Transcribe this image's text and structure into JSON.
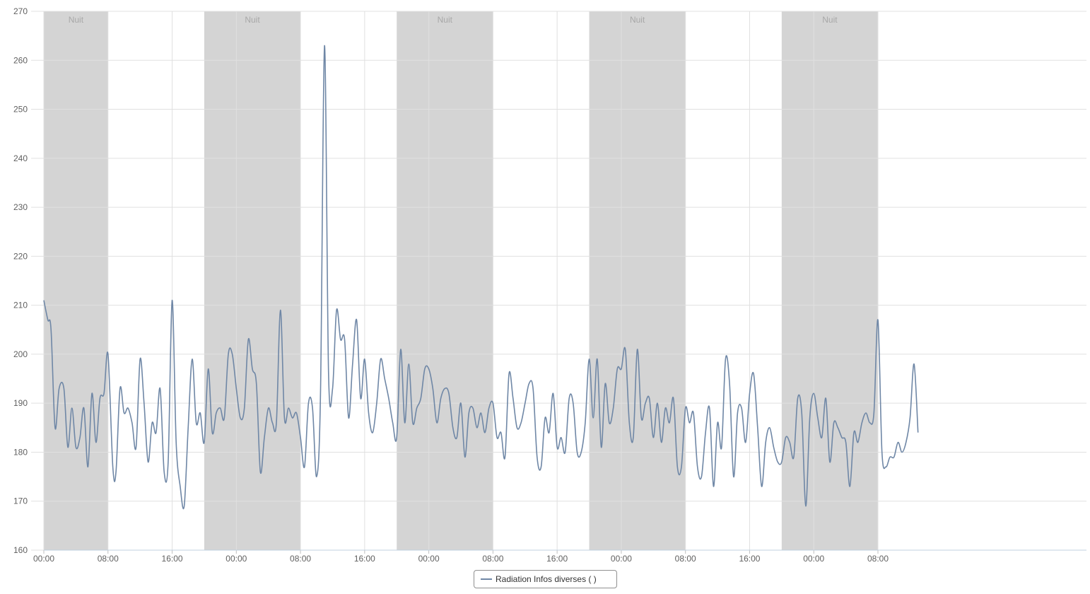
{
  "colors": {
    "series": "#6f87a6",
    "night_band": "#d4d4d4",
    "grid": "#e0e0e0",
    "axis_text": "#606060",
    "band_text": "#a8a8a8"
  },
  "chart_data": {
    "type": "line",
    "x_unit": "hours since first tick",
    "xlim": [
      0,
      130
    ],
    "ylim": [
      160,
      270
    ],
    "xlabel": "",
    "ylabel": "",
    "grid": true,
    "legend_placement": "bottom-center",
    "y_ticks": [
      160,
      170,
      180,
      190,
      200,
      210,
      220,
      230,
      240,
      250,
      260,
      270
    ],
    "x_ticks": [
      {
        "h": 0,
        "label": "00:00"
      },
      {
        "h": 8,
        "label": "08:00"
      },
      {
        "h": 16,
        "label": "16:00"
      },
      {
        "h": 24,
        "label": "00:00"
      },
      {
        "h": 32,
        "label": "08:00"
      },
      {
        "h": 40,
        "label": "16:00"
      },
      {
        "h": 48,
        "label": "00:00"
      },
      {
        "h": 56,
        "label": "08:00"
      },
      {
        "h": 64,
        "label": "16:00"
      },
      {
        "h": 72,
        "label": "00:00"
      },
      {
        "h": 80,
        "label": "08:00"
      },
      {
        "h": 88,
        "label": "16:00"
      },
      {
        "h": 96,
        "label": "00:00"
      },
      {
        "h": 104,
        "label": "08:00"
      }
    ],
    "night_bands": [
      {
        "from": 0,
        "to": 8,
        "label": "Nuit"
      },
      {
        "from": 20,
        "to": 32,
        "label": "Nuit"
      },
      {
        "from": 44,
        "to": 56,
        "label": "Nuit"
      },
      {
        "from": 68,
        "to": 80,
        "label": "Nuit"
      },
      {
        "from": 92,
        "to": 104,
        "label": "Nuit"
      }
    ],
    "series": [
      {
        "name": "Radiation Infos diverses ( )",
        "points": [
          [
            0,
            211
          ],
          [
            0.5,
            207
          ],
          [
            0.9,
            205
          ],
          [
            1.4,
            185
          ],
          [
            1.9,
            193
          ],
          [
            2.5,
            193
          ],
          [
            3,
            181
          ],
          [
            3.5,
            189
          ],
          [
            4,
            181
          ],
          [
            4.5,
            183
          ],
          [
            5,
            189
          ],
          [
            5.5,
            177
          ],
          [
            6,
            192
          ],
          [
            6.5,
            182
          ],
          [
            7,
            191
          ],
          [
            7.5,
            192
          ],
          [
            8,
            200
          ],
          [
            8.6,
            177
          ],
          [
            9,
            176
          ],
          [
            9.5,
            193
          ],
          [
            10,
            188
          ],
          [
            10.5,
            189
          ],
          [
            11,
            186
          ],
          [
            11.5,
            181
          ],
          [
            12,
            199
          ],
          [
            12.5,
            190
          ],
          [
            13,
            178
          ],
          [
            13.5,
            186
          ],
          [
            14,
            184
          ],
          [
            14.5,
            193
          ],
          [
            15,
            176
          ],
          [
            15.5,
            178
          ],
          [
            16,
            211
          ],
          [
            16.5,
            182
          ],
          [
            17,
            173
          ],
          [
            17.5,
            169
          ],
          [
            18,
            185
          ],
          [
            18.5,
            199
          ],
          [
            19,
            186
          ],
          [
            19.5,
            188
          ],
          [
            20,
            182
          ],
          [
            20.5,
            197
          ],
          [
            21,
            184
          ],
          [
            21.5,
            188
          ],
          [
            22,
            189
          ],
          [
            22.5,
            187
          ],
          [
            23,
            200
          ],
          [
            23.5,
            200
          ],
          [
            24,
            193
          ],
          [
            24.5,
            187
          ],
          [
            25,
            189
          ],
          [
            25.5,
            203
          ],
          [
            26,
            197
          ],
          [
            26.5,
            194
          ],
          [
            27,
            176
          ],
          [
            27.5,
            183
          ],
          [
            28,
            189
          ],
          [
            28.5,
            186
          ],
          [
            29,
            186
          ],
          [
            29.5,
            209
          ],
          [
            30,
            187
          ],
          [
            30.5,
            189
          ],
          [
            31,
            187
          ],
          [
            31.5,
            188
          ],
          [
            32,
            183
          ],
          [
            32.5,
            177
          ],
          [
            33,
            190
          ],
          [
            33.5,
            189
          ],
          [
            34,
            175
          ],
          [
            34.5,
            192
          ],
          [
            35,
            263
          ],
          [
            35.5,
            196
          ],
          [
            36,
            193
          ],
          [
            36.5,
            209
          ],
          [
            37,
            203
          ],
          [
            37.5,
            203
          ],
          [
            38,
            187
          ],
          [
            38.5,
            198
          ],
          [
            39,
            207
          ],
          [
            39.5,
            191
          ],
          [
            40,
            199
          ],
          [
            40.5,
            188
          ],
          [
            41,
            184
          ],
          [
            41.5,
            190
          ],
          [
            42,
            199
          ],
          [
            42.5,
            195
          ],
          [
            43,
            191
          ],
          [
            43.5,
            186
          ],
          [
            44,
            183
          ],
          [
            44.5,
            201
          ],
          [
            45,
            186
          ],
          [
            45.5,
            198
          ],
          [
            46,
            186
          ],
          [
            46.5,
            189
          ],
          [
            47,
            191
          ],
          [
            47.5,
            197
          ],
          [
            48,
            197
          ],
          [
            48.5,
            193
          ],
          [
            49,
            186
          ],
          [
            49.5,
            191
          ],
          [
            50,
            193
          ],
          [
            50.5,
            192
          ],
          [
            51,
            185
          ],
          [
            51.5,
            183
          ],
          [
            52,
            190
          ],
          [
            52.5,
            179
          ],
          [
            53,
            188
          ],
          [
            53.5,
            189
          ],
          [
            54,
            185
          ],
          [
            54.5,
            188
          ],
          [
            55,
            184
          ],
          [
            55.5,
            189
          ],
          [
            56,
            190
          ],
          [
            56.5,
            183
          ],
          [
            57,
            184
          ],
          [
            57.5,
            179
          ],
          [
            58,
            196
          ],
          [
            58.5,
            191
          ],
          [
            59,
            185
          ],
          [
            59.5,
            186
          ],
          [
            60,
            190
          ],
          [
            60.5,
            194
          ],
          [
            61,
            193
          ],
          [
            61.5,
            179
          ],
          [
            62,
            177
          ],
          [
            62.5,
            187
          ],
          [
            63,
            184
          ],
          [
            63.5,
            192
          ],
          [
            64,
            181
          ],
          [
            64.5,
            183
          ],
          [
            65,
            180
          ],
          [
            65.5,
            191
          ],
          [
            66,
            190
          ],
          [
            66.5,
            180
          ],
          [
            67,
            180
          ],
          [
            67.5,
            186
          ],
          [
            68,
            199
          ],
          [
            68.5,
            187
          ],
          [
            69,
            199
          ],
          [
            69.5,
            181
          ],
          [
            70,
            194
          ],
          [
            70.5,
            186
          ],
          [
            71,
            189
          ],
          [
            71.5,
            197
          ],
          [
            72,
            197
          ],
          [
            72.5,
            201
          ],
          [
            73,
            186
          ],
          [
            73.5,
            183
          ],
          [
            74,
            201
          ],
          [
            74.5,
            187
          ],
          [
            75,
            190
          ],
          [
            75.5,
            191
          ],
          [
            76,
            183
          ],
          [
            76.5,
            190
          ],
          [
            77,
            182
          ],
          [
            77.5,
            189
          ],
          [
            78,
            186
          ],
          [
            78.5,
            191
          ],
          [
            79,
            177
          ],
          [
            79.5,
            177
          ],
          [
            80,
            189
          ],
          [
            80.5,
            186
          ],
          [
            81,
            188
          ],
          [
            81.5,
            177
          ],
          [
            82,
            175
          ],
          [
            82.5,
            184
          ],
          [
            83,
            189
          ],
          [
            83.5,
            173
          ],
          [
            84,
            186
          ],
          [
            84.5,
            181
          ],
          [
            85,
            199
          ],
          [
            85.5,
            194
          ],
          [
            86,
            175
          ],
          [
            86.5,
            188
          ],
          [
            87,
            189
          ],
          [
            87.5,
            182
          ],
          [
            88,
            192
          ],
          [
            88.5,
            196
          ],
          [
            89,
            185
          ],
          [
            89.5,
            173
          ],
          [
            90,
            182
          ],
          [
            90.5,
            185
          ],
          [
            91,
            181
          ],
          [
            91.5,
            178
          ],
          [
            92,
            178
          ],
          [
            92.5,
            183
          ],
          [
            93,
            182
          ],
          [
            93.5,
            179
          ],
          [
            94,
            191
          ],
          [
            94.5,
            188
          ],
          [
            95,
            169
          ],
          [
            95.5,
            187
          ],
          [
            96,
            192
          ],
          [
            96.5,
            187
          ],
          [
            97,
            183
          ],
          [
            97.5,
            191
          ],
          [
            98,
            178
          ],
          [
            98.5,
            186
          ],
          [
            99,
            185
          ],
          [
            99.5,
            183
          ],
          [
            100,
            182
          ],
          [
            100.5,
            173
          ],
          [
            101,
            184
          ],
          [
            101.5,
            182
          ],
          [
            102,
            186
          ],
          [
            102.5,
            188
          ],
          [
            103,
            186
          ],
          [
            103.5,
            188
          ],
          [
            104,
            207
          ],
          [
            104.5,
            180
          ],
          [
            105,
            177
          ],
          [
            105.5,
            179
          ],
          [
            106,
            179
          ],
          [
            106.5,
            182
          ],
          [
            107,
            180
          ],
          [
            107.5,
            182
          ],
          [
            108,
            187
          ],
          [
            108.5,
            198
          ],
          [
            109,
            184
          ]
        ]
      }
    ]
  },
  "legend": {
    "label": "Radiation Infos diverses ( )"
  }
}
